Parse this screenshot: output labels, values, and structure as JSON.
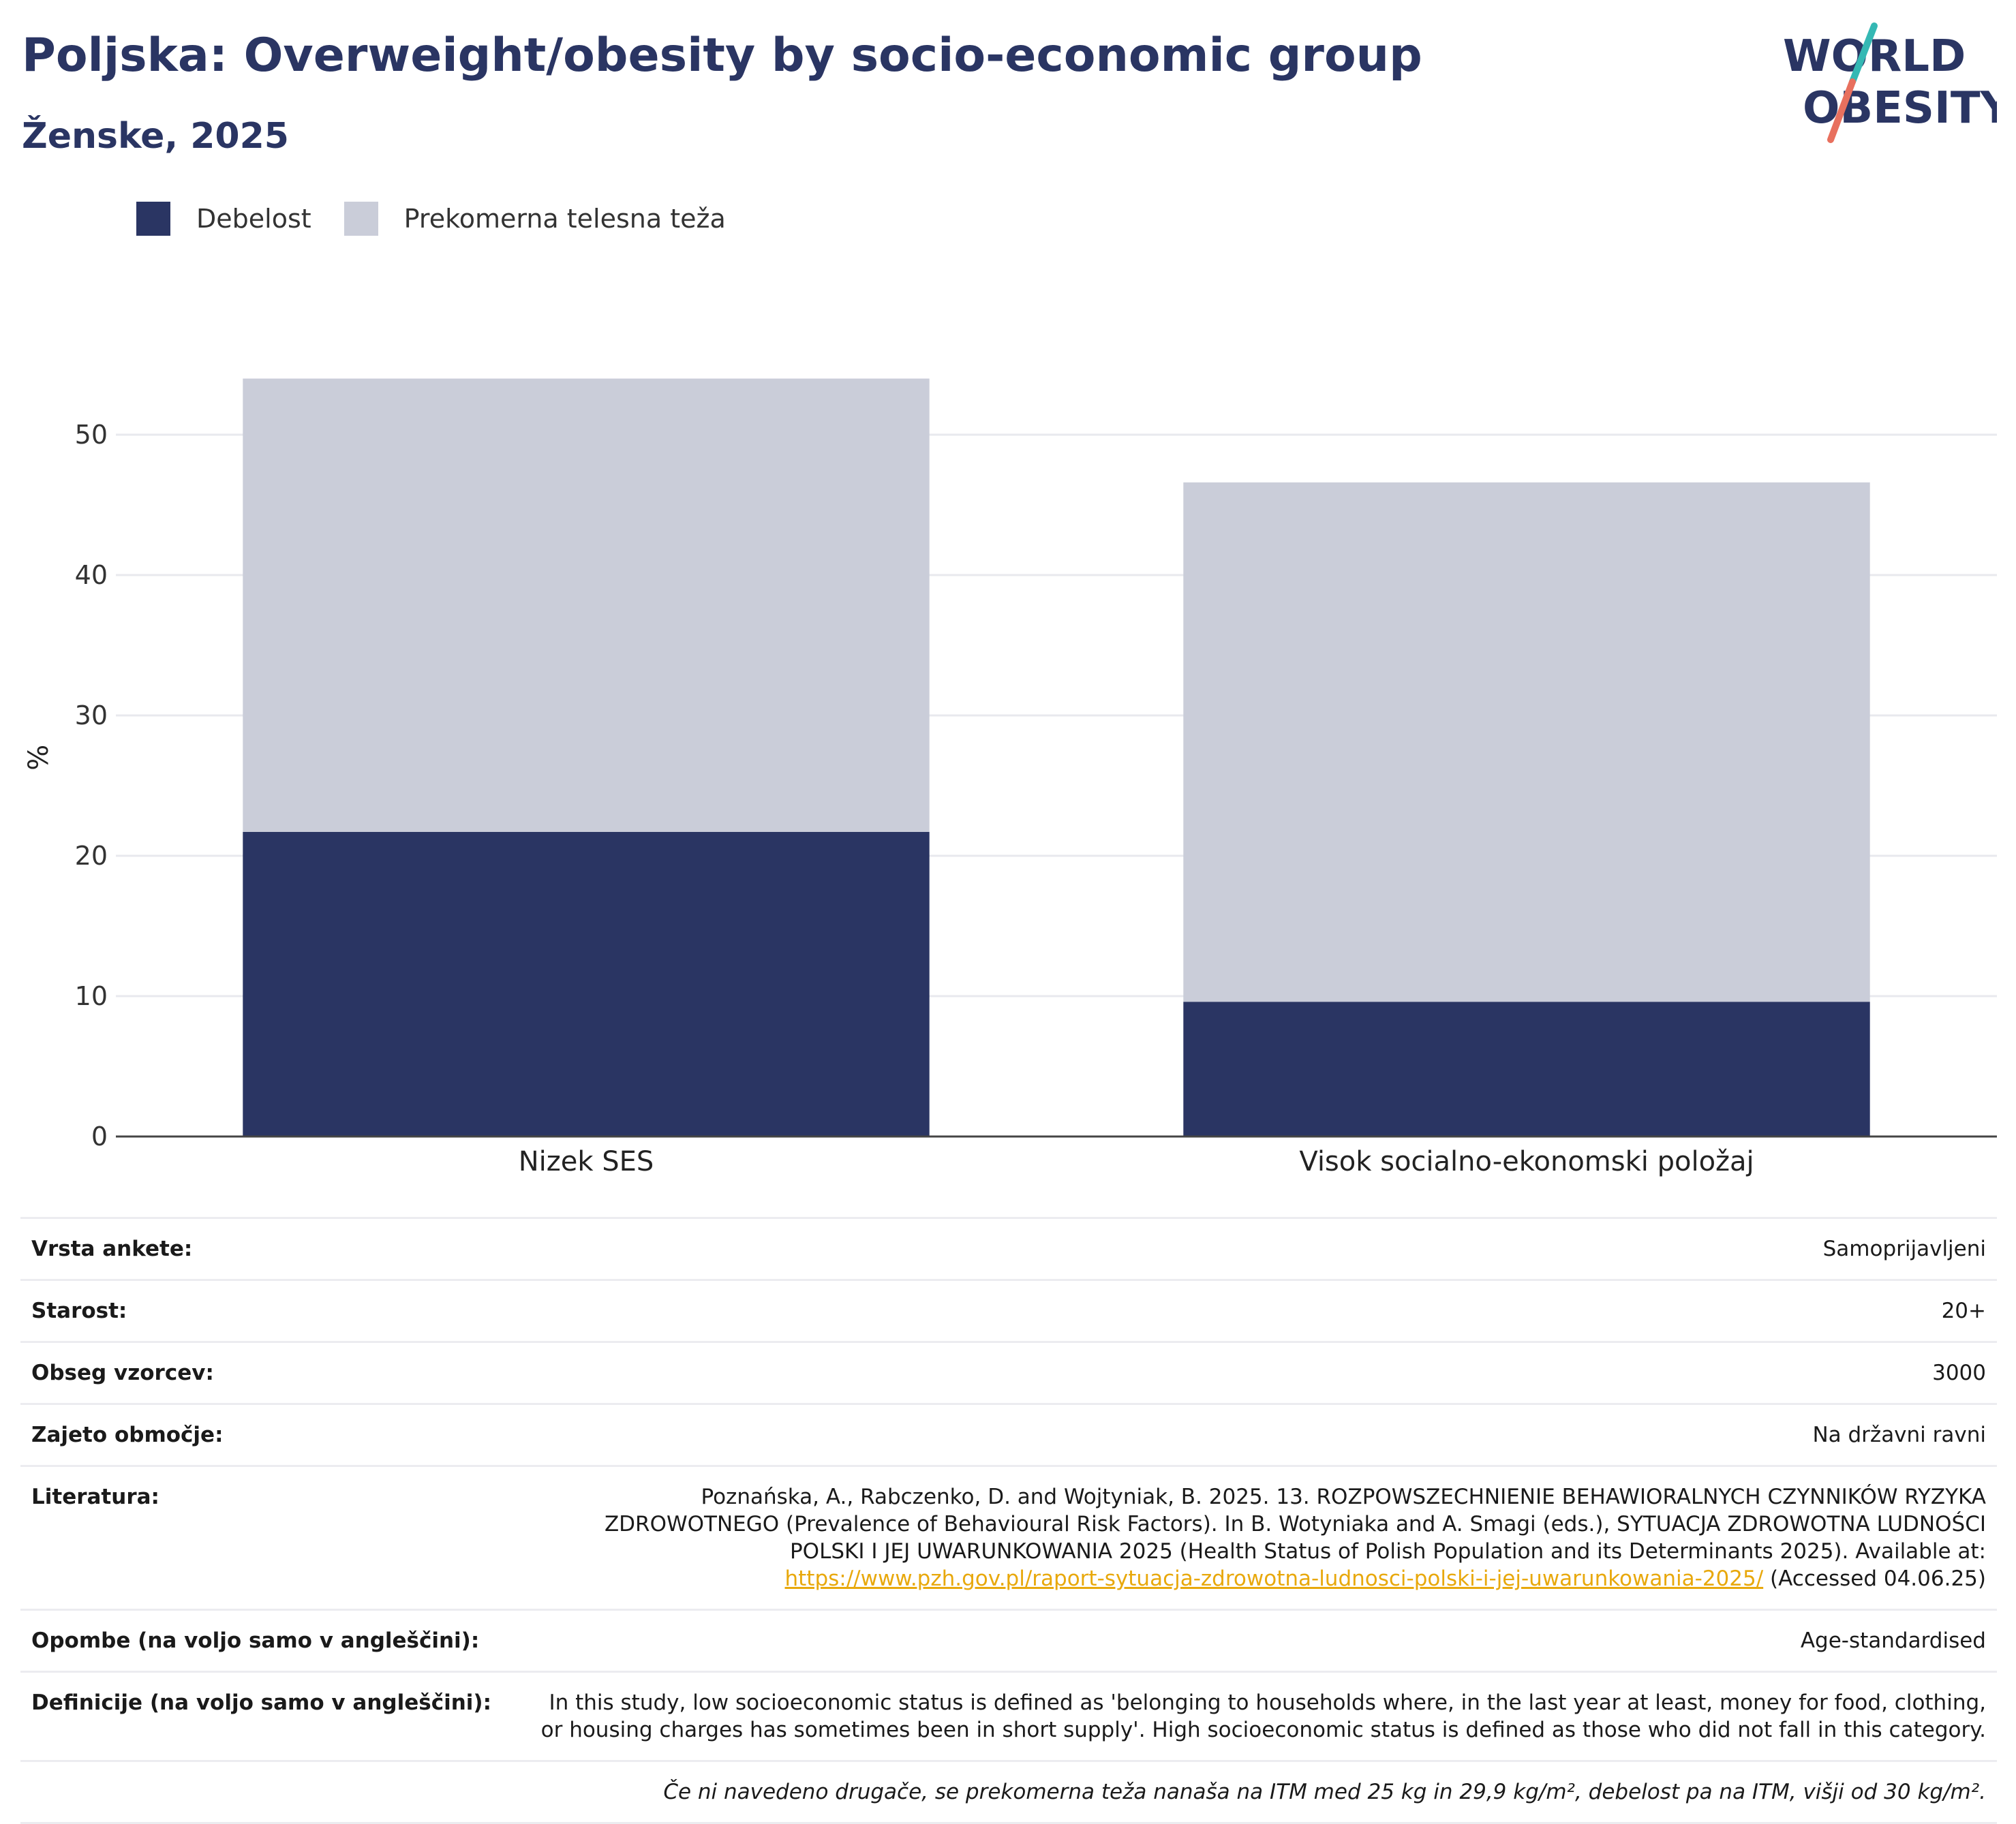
{
  "header": {
    "title": "Poljska: Overweight/obesity by socio-economic group",
    "subtitle": "Ženske, 2025"
  },
  "logo": {
    "line1": "WORLD",
    "line2": "OBESITY",
    "accent_teal": "#35b8b4",
    "accent_red": "#e8705e",
    "text_color": "#2a3563"
  },
  "legend": [
    {
      "label": "Debelost",
      "color": "#2a3563"
    },
    {
      "label": "Prekomerna telesna teža",
      "color": "#cacdd9"
    }
  ],
  "chart_data": {
    "type": "bar",
    "stacked": true,
    "ylabel": "%",
    "ylim": [
      0,
      55
    ],
    "yticks": [
      0,
      10,
      20,
      30,
      40,
      50
    ],
    "grid": true,
    "legend_position": "top-left",
    "categories": [
      "Nizek SES",
      "Visok socialno-ekonomski položaj"
    ],
    "series": [
      {
        "name": "Debelost",
        "color": "#2a3563",
        "values": [
          21.7,
          9.6
        ]
      },
      {
        "name": "Prekomerna telesna teža",
        "color": "#cacdd9",
        "values": [
          32.3,
          37.0
        ]
      }
    ]
  },
  "meta": {
    "survey_label": "Vrsta ankete:",
    "survey_value": "Samoprijavljeni",
    "age_label": "Starost:",
    "age_value": "20+",
    "sample_label": "Obseg vzorcev:",
    "sample_value": "3000",
    "area_label": "Zajeto območje:",
    "area_value": "Na državni ravni",
    "lit_label": "Literatura:",
    "lit_text": "Poznańska, A., Rabczenko, D. and Wojtyniak, B. 2025. 13. ROZPOWSZECHNIENIE BEHAWIORALNYCH CZYNNIKÓW RYZYKA ZDROWOTNEGO (Prevalence of Behavioural Risk Factors). In B. Wotyniaka and A. Smagi (eds.), SYTUACJA ZDROWOTNA LUDNOŚCI POLSKI I JEJ UWARUNKOWANIA 2025 (Health Status of Polish Population and its Determinants 2025). Available at:",
    "lit_link": "https://www.pzh.gov.pl/raport-sytuacja-zdrowotna-ludnosci-polski-i-jej-uwarunkowania-2025/",
    "lit_suffix": "(Accessed 04.06.25)",
    "notes_label": "Opombe (na voljo samo v angleščini):",
    "notes_value": "Age-standardised",
    "def_label": "Definicije (na voljo samo v angleščini):",
    "def_value": "In this study, low socioeconomic status is defined as 'belonging to households where, in the last year at least, money for food, clothing, or housing charges has sometimes been in short supply'. High socioeconomic status is defined as those who did not fall in this category.",
    "footnote": "Če ni navedeno drugače, se prekomerna teža nanaša na ITM med 25 kg in 29,9 kg/m², debelost pa na ITM, višji od 30 kg/m²."
  }
}
